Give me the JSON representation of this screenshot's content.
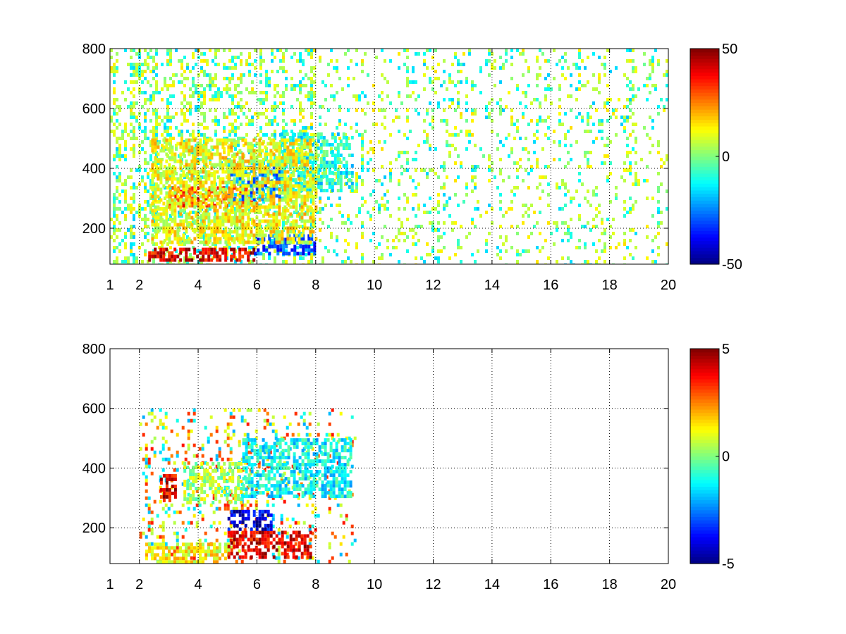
{
  "figure": {
    "background": "#ffffff"
  },
  "chart_data": [
    {
      "type": "heatmap",
      "colormap": "jet",
      "grid": true,
      "grid_style": "dotted",
      "xlim": [
        1,
        20
      ],
      "ylim": [
        80,
        800
      ],
      "x_ticks": [
        1,
        2,
        4,
        6,
        8,
        10,
        12,
        14,
        16,
        18,
        20
      ],
      "x_tick_labels": [
        "1",
        "2",
        "4",
        "6",
        "8",
        "10",
        "12",
        "14",
        "16",
        "18",
        "20"
      ],
      "y_ticks": [
        200,
        400,
        600,
        800
      ],
      "y_tick_labels": [
        "200",
        "400",
        "600",
        "800"
      ],
      "colorbar": {
        "range": [
          -50,
          50
        ],
        "ticks": [
          50,
          0,
          -50
        ],
        "tick_labels": [
          "50",
          "0",
          "-50"
        ]
      },
      "features": [
        {
          "x": [
            2.3,
            5.9
          ],
          "y": [
            95,
            135
          ],
          "value": 40
        },
        {
          "x": [
            5.9,
            8.0
          ],
          "y": [
            110,
            180
          ],
          "value": -30
        },
        {
          "x": [
            3.0,
            5.8
          ],
          "y": [
            270,
            340
          ],
          "value": 30
        },
        {
          "x": [
            5.0,
            6.8
          ],
          "y": [
            300,
            420
          ],
          "value": -25
        },
        {
          "x": [
            6.8,
            9.2
          ],
          "y": [
            330,
            520
          ],
          "value": -10
        },
        {
          "x": [
            2.4,
            8.0
          ],
          "y": [
            150,
            500
          ],
          "value": 12
        }
      ],
      "sparse_region": {
        "x": [
          1.0,
          20.0
        ],
        "y": [
          80,
          800
        ],
        "density": 0.22
      },
      "sparse_values": [
        -12,
        4,
        10
      ]
    },
    {
      "type": "heatmap",
      "colormap": "jet",
      "grid": true,
      "grid_style": "dotted",
      "xlim": [
        1,
        20
      ],
      "ylim": [
        80,
        800
      ],
      "x_ticks": [
        1,
        2,
        4,
        6,
        8,
        10,
        12,
        14,
        16,
        18,
        20
      ],
      "x_tick_labels": [
        "1",
        "2",
        "4",
        "6",
        "8",
        "10",
        "12",
        "14",
        "16",
        "18",
        "20"
      ],
      "y_ticks": [
        200,
        400,
        600,
        800
      ],
      "y_tick_labels": [
        "200",
        "400",
        "600",
        "800"
      ],
      "colorbar": {
        "range": [
          -5,
          5
        ],
        "ticks": [
          5,
          0,
          -5
        ],
        "tick_labels": [
          "5",
          "0",
          "-5"
        ]
      },
      "features": [
        {
          "x": [
            2.2,
            5.0
          ],
          "y": [
            85,
            150
          ],
          "value": 1.2
        },
        {
          "x": [
            5.0,
            7.8
          ],
          "y": [
            100,
            190
          ],
          "value": 4.0
        },
        {
          "x": [
            5.0,
            6.5
          ],
          "y": [
            200,
            260
          ],
          "value": -4.0
        },
        {
          "x": [
            3.5,
            5.5
          ],
          "y": [
            280,
            420
          ],
          "value": 0.5
        },
        {
          "x": [
            5.5,
            9.2
          ],
          "y": [
            300,
            500
          ],
          "value": -1.2
        },
        {
          "x": [
            2.7,
            3.2
          ],
          "y": [
            290,
            380
          ],
          "value": 4.0
        }
      ],
      "sparse_region": {
        "x": [
          2.0,
          9.3
        ],
        "y": [
          80,
          600
        ],
        "density": 0.12
      },
      "sparse_values": [
        -1.5,
        1,
        3
      ]
    }
  ]
}
